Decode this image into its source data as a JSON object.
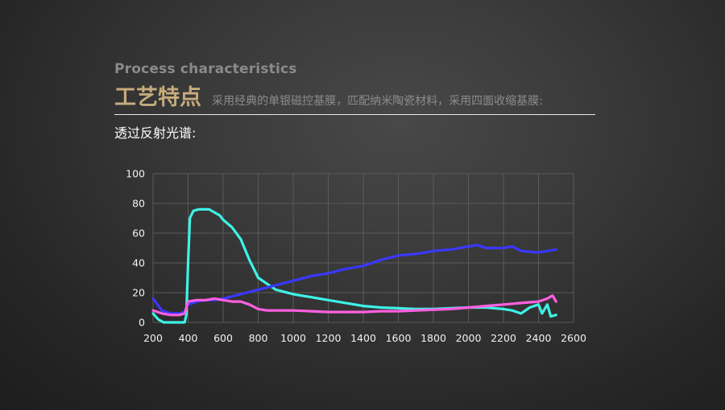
{
  "header": {
    "en_title": "Process characteristics",
    "cn_title": "工艺特点",
    "subtitle": "采用经典的单银磁控基膜，匹配纳米陶瓷材料，采用四面收缩基膜:",
    "section_label": "透过反射光谱:"
  },
  "colors": {
    "grid": "#5a5a5a",
    "cyan": "#3ef2e6",
    "blue": "#3a38ff",
    "pink": "#ff5fe0"
  },
  "chart_data": {
    "type": "line",
    "title": "",
    "xlabel": "",
    "ylabel": "",
    "xlim": [
      200,
      2600
    ],
    "ylim": [
      0,
      100
    ],
    "x_ticks": [
      200,
      400,
      600,
      800,
      1000,
      1200,
      1400,
      1600,
      1800,
      2000,
      2200,
      2400,
      2600
    ],
    "y_ticks": [
      0,
      20,
      40,
      60,
      80,
      100
    ],
    "grid": true,
    "series": [
      {
        "color": "#3ef2e6",
        "x": [
          200,
          230,
          260,
          300,
          350,
          380,
          390,
          400,
          410,
          430,
          460,
          500,
          520,
          550,
          580,
          600,
          650,
          700,
          750,
          800,
          850,
          900,
          1000,
          1100,
          1200,
          1300,
          1400,
          1500,
          1600,
          1700,
          1800,
          1900,
          2000,
          2100,
          2200,
          2250,
          2300,
          2350,
          2400,
          2420,
          2450,
          2470,
          2500
        ],
        "y": [
          6,
          2,
          0,
          0,
          0,
          0,
          5,
          40,
          70,
          75,
          76,
          76,
          76,
          74,
          72,
          69,
          64,
          56,
          42,
          30,
          26,
          22,
          19,
          17,
          15,
          13,
          11,
          10,
          9.5,
          9,
          9,
          9.5,
          10,
          10,
          9,
          8,
          6,
          10,
          12,
          6,
          12,
          4,
          5
        ]
      },
      {
        "color": "#3a38ff",
        "x": [
          200,
          250,
          300,
          350,
          380,
          400,
          450,
          500,
          550,
          600,
          700,
          800,
          900,
          1000,
          1100,
          1200,
          1300,
          1400,
          1500,
          1600,
          1700,
          1800,
          1900,
          2000,
          2050,
          2100,
          2200,
          2250,
          2300,
          2400,
          2450,
          2500
        ],
        "y": [
          16,
          8,
          6,
          6,
          7,
          12,
          14,
          15,
          15,
          16,
          19,
          22,
          25,
          28,
          31,
          33,
          36,
          38,
          42,
          45,
          46,
          48,
          49,
          51,
          52,
          50,
          50,
          51,
          48,
          47,
          48,
          49
        ]
      },
      {
        "color": "#ff5fe0",
        "x": [
          200,
          250,
          300,
          350,
          380,
          400,
          450,
          500,
          550,
          600,
          650,
          700,
          750,
          800,
          850,
          900,
          1000,
          1100,
          1200,
          1300,
          1400,
          1500,
          1600,
          1700,
          1800,
          1900,
          2000,
          2100,
          2200,
          2300,
          2400,
          2450,
          2480,
          2500
        ],
        "y": [
          8,
          6,
          5,
          5,
          6,
          14,
          15,
          15,
          16,
          15,
          14,
          14,
          12,
          9,
          8,
          8,
          8,
          7.5,
          7,
          7,
          7,
          7.5,
          7.5,
          8,
          8.5,
          9,
          10,
          11,
          12,
          13,
          14,
          16,
          18,
          14
        ]
      }
    ]
  }
}
